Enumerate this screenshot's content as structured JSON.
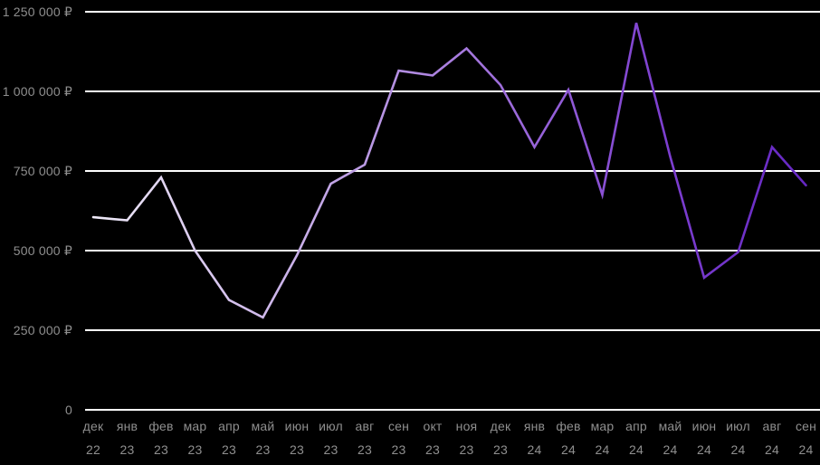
{
  "chart_data": {
    "type": "line",
    "title": "",
    "xlabel": "",
    "ylabel": "",
    "currency": "RUB",
    "categories": [
      {
        "month": "дек",
        "year": "22"
      },
      {
        "month": "янв",
        "year": "23"
      },
      {
        "month": "фев",
        "year": "23"
      },
      {
        "month": "мар",
        "year": "23"
      },
      {
        "month": "апр",
        "year": "23"
      },
      {
        "month": "май",
        "year": "23"
      },
      {
        "month": "июн",
        "year": "23"
      },
      {
        "month": "июл",
        "year": "23"
      },
      {
        "month": "авг",
        "year": "23"
      },
      {
        "month": "сен",
        "year": "23"
      },
      {
        "month": "окт",
        "year": "23"
      },
      {
        "month": "ноя",
        "year": "23"
      },
      {
        "month": "дек",
        "year": "23"
      },
      {
        "month": "янв",
        "year": "24"
      },
      {
        "month": "фев",
        "year": "24"
      },
      {
        "month": "мар",
        "year": "24"
      },
      {
        "month": "апр",
        "year": "24"
      },
      {
        "month": "май",
        "year": "24"
      },
      {
        "month": "июн",
        "year": "24"
      },
      {
        "month": "июл",
        "year": "24"
      },
      {
        "month": "авг",
        "year": "24"
      },
      {
        "month": "сен",
        "year": "24"
      }
    ],
    "values": [
      605000,
      595000,
      730000,
      500000,
      345000,
      290000,
      485000,
      710000,
      770000,
      1065000,
      1050000,
      1135000,
      1020000,
      825000,
      1005000,
      675000,
      1215000,
      795000,
      415000,
      495000,
      825000,
      705000
    ],
    "y_ticks": [
      {
        "value": 1250000,
        "label": "1 250 000 ₽"
      },
      {
        "value": 1000000,
        "label": "1 000 000 ₽"
      },
      {
        "value": 750000,
        "label": "750 000 ₽"
      },
      {
        "value": 500000,
        "label": "500 000 ₽"
      },
      {
        "value": 250000,
        "label": "250 000 ₽"
      },
      {
        "value": 0,
        "label": "0"
      }
    ],
    "ylim": [
      0,
      1250000
    ],
    "grid": "horizontal",
    "legend": "none",
    "colors": {
      "background": "#000000",
      "grid": "#ffffff",
      "axis_label": "#8f8f8f",
      "line_gradient": [
        {
          "offset": 0,
          "color": "#eee9f7"
        },
        {
          "offset": 0.3,
          "color": "#c7ade8"
        },
        {
          "offset": 0.55,
          "color": "#a172dc"
        },
        {
          "offset": 0.8,
          "color": "#7d3fd0"
        },
        {
          "offset": 1,
          "color": "#6527c2"
        }
      ]
    }
  }
}
